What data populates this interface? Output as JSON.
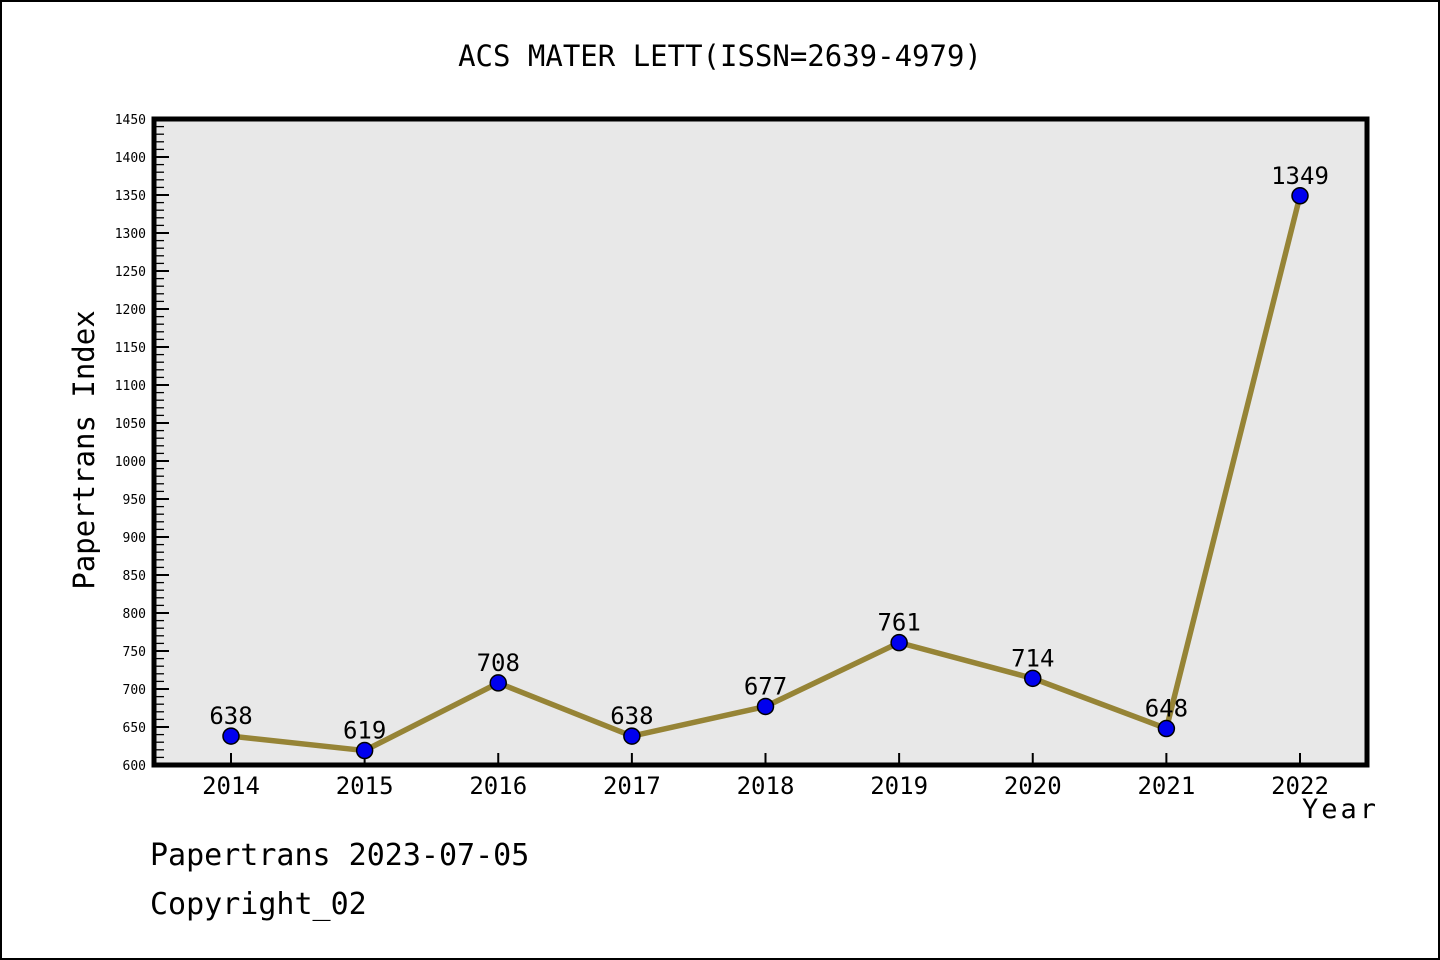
{
  "title": "ACS MATER LETT(ISSN=2639-4979)",
  "footer": {
    "line1": "Papertrans 2023-07-05",
    "line2": "Copyright_02"
  },
  "chart_data": {
    "type": "line",
    "title": "ACS MATER LETT(ISSN=2639-4979)",
    "xlabel": "Year",
    "ylabel": "Papertrans Index",
    "x": [
      2014,
      2015,
      2016,
      2017,
      2018,
      2019,
      2020,
      2021,
      2022
    ],
    "series": [
      {
        "name": "Papertrans Index",
        "values": [
          638,
          619,
          708,
          638,
          677,
          761,
          714,
          648,
          1349
        ]
      }
    ],
    "point_labels": [
      638,
      619,
      708,
      638,
      677,
      761,
      714,
      648,
      1349
    ],
    "ylim": [
      600,
      1450
    ],
    "ytick_step": 50,
    "ytick_minor_step": 10,
    "grid": false,
    "legend": false,
    "colors": {
      "line": "#968436",
      "marker": "#0000EE",
      "marker_edge": "#000000",
      "plot_bg": "#E8E8E8",
      "frame": "#000000",
      "text": "#000000"
    }
  }
}
